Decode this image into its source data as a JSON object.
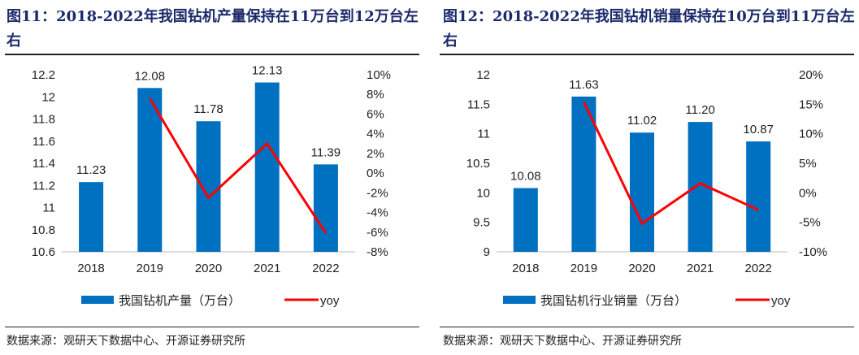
{
  "chart_data": [
    {
      "type": "bar+line",
      "title": "图11：2018-2022年我国钻机产量保持在11万台到12万台左右",
      "categories": [
        "2018",
        "2019",
        "2020",
        "2021",
        "2022"
      ],
      "series": [
        {
          "name": "我国钻机产量（万台）",
          "type": "bar",
          "values": [
            11.23,
            12.08,
            11.78,
            12.13,
            11.39
          ],
          "labels": [
            "11.23",
            "12.08",
            "11.78",
            "12.13",
            "11.39"
          ],
          "color": "#0070c0"
        },
        {
          "name": "yoy",
          "type": "line",
          "axis": "right",
          "values": [
            null,
            7.6,
            -2.5,
            3.0,
            -6.1
          ],
          "color": "#ff0000"
        }
      ],
      "ylim": [
        10.6,
        12.2
      ],
      "yticks": [
        "10.6",
        "10.8",
        "11",
        "11.2",
        "11.4",
        "11.6",
        "11.8",
        "12",
        "12.2"
      ],
      "y2lim": [
        -8,
        10
      ],
      "y2ticks": [
        "-8%",
        "-6%",
        "-4%",
        "-2%",
        "0%",
        "2%",
        "4%",
        "6%",
        "8%",
        "10%"
      ],
      "legend": "bottom",
      "grid": false,
      "source": "数据来源：观研天下数据中心、开源证券研究所"
    },
    {
      "type": "bar+line",
      "title": "图12：2018-2022年我国钻机销量保持在10万台到11万台左右",
      "categories": [
        "2018",
        "2019",
        "2020",
        "2021",
        "2022"
      ],
      "series": [
        {
          "name": "我国钻机行业销量（万台）",
          "type": "bar",
          "values": [
            10.08,
            11.63,
            11.02,
            11.2,
            10.87
          ],
          "labels": [
            "10.08",
            "11.63",
            "11.02",
            "11.20",
            "10.87"
          ],
          "color": "#0070c0"
        },
        {
          "name": "yoy",
          "type": "line",
          "axis": "right",
          "values": [
            null,
            15.4,
            -5.2,
            1.6,
            -2.9
          ],
          "color": "#ff0000"
        }
      ],
      "ylim": [
        9,
        12
      ],
      "yticks": [
        "9",
        "9.5",
        "10",
        "10.5",
        "11",
        "11.5",
        "12"
      ],
      "y2lim": [
        -10,
        20
      ],
      "y2ticks": [
        "-10%",
        "-5%",
        "0%",
        "5%",
        "10%",
        "15%",
        "20%"
      ],
      "legend": "bottom",
      "grid": false,
      "source": "数据来源：观研天下数据中心、开源证券研究所"
    }
  ]
}
